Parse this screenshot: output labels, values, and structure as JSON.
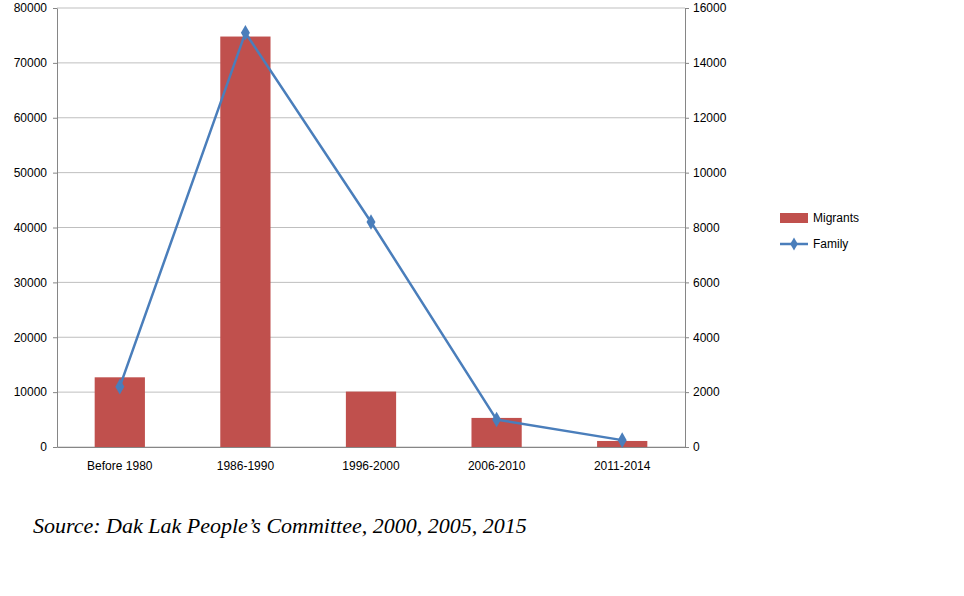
{
  "chart_data": {
    "type": "bar",
    "categories": [
      "Before 1980",
      "1986-1990",
      "1996-2000",
      "2006-2010",
      "2011-2014"
    ],
    "series": [
      {
        "name": "Migrants",
        "type": "bar",
        "color": "#c0504d",
        "values": [
          12700,
          74800,
          10100,
          5300,
          1100
        ]
      },
      {
        "name": "Family",
        "type": "line",
        "axis": "y2",
        "color": "#4a7ebb",
        "marker": "diamond",
        "values": [
          2200,
          15100,
          8200,
          1000,
          250
        ]
      }
    ],
    "ylim": [
      0,
      80000
    ],
    "yticks": [
      0,
      10000,
      20000,
      30000,
      40000,
      50000,
      60000,
      70000,
      80000
    ],
    "y2lim": [
      0,
      16000
    ],
    "y2ticks": [
      0,
      2000,
      4000,
      6000,
      8000,
      10000,
      12000,
      14000,
      16000
    ],
    "grid": true,
    "legend": "right",
    "annotations": [
      "Source:  Dak Lak People’s Committee,  2000, 2005, 2015"
    ]
  }
}
